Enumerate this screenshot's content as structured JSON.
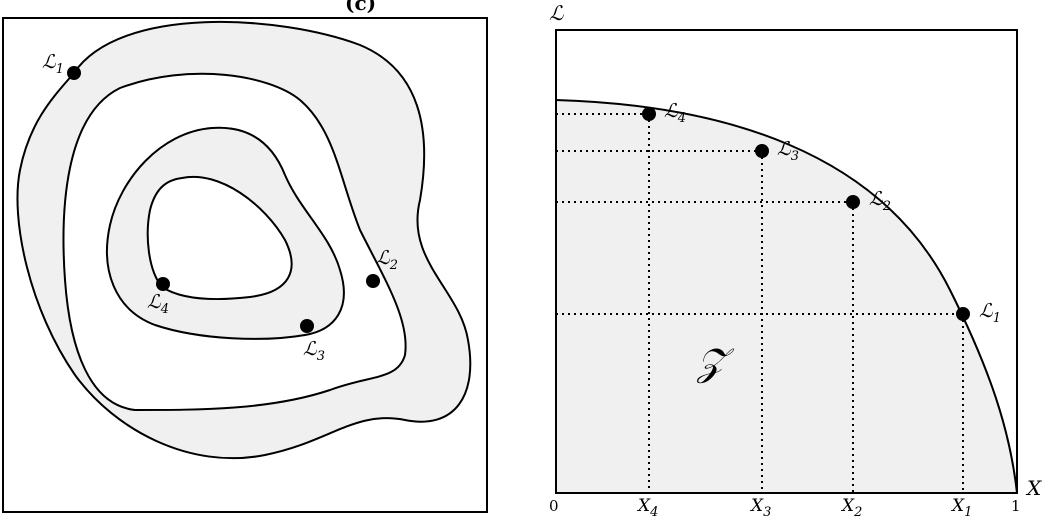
{
  "left_panel": {
    "title_fragment": "(c)",
    "points": [
      {
        "label": "ℒ",
        "sub": "1"
      },
      {
        "label": "ℒ",
        "sub": "2"
      },
      {
        "label": "ℒ",
        "sub": "3"
      },
      {
        "label": "ℒ",
        "sub": "4"
      }
    ]
  },
  "right_panel": {
    "y_axis_label": "ℒ",
    "x_axis_label": "X",
    "region_label": "𝒵",
    "origin_label": "0",
    "x_end_label": "1",
    "points": [
      {
        "label": "ℒ",
        "sub": "1"
      },
      {
        "label": "ℒ",
        "sub": "2"
      },
      {
        "label": "ℒ",
        "sub": "3"
      },
      {
        "label": "ℒ",
        "sub": "4"
      }
    ],
    "x_ticks": [
      {
        "label": "X",
        "sub": "4"
      },
      {
        "label": "X",
        "sub": "3"
      },
      {
        "label": "X",
        "sub": "2"
      },
      {
        "label": "X",
        "sub": "1"
      }
    ]
  }
}
